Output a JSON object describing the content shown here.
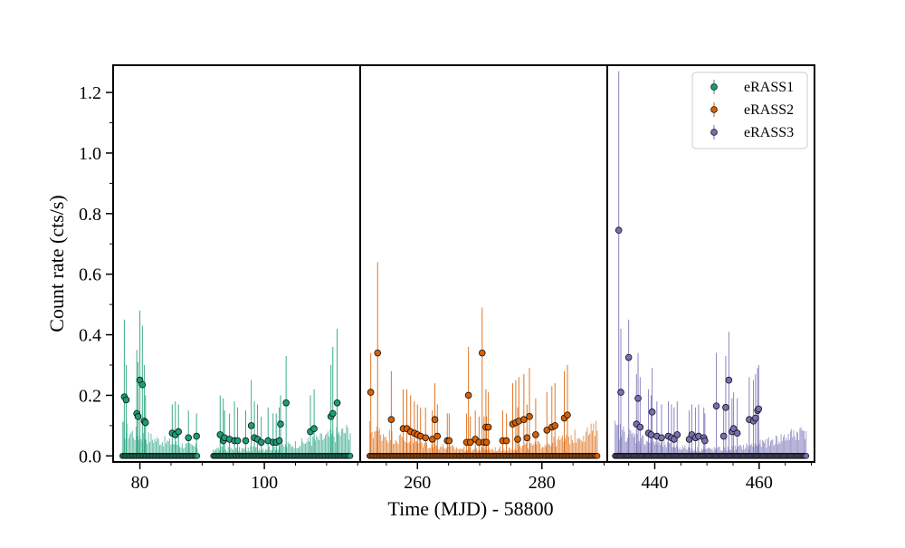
{
  "chart_data": {
    "type": "scatter",
    "title": "",
    "xlabel": "Time (MJD) - 58800",
    "ylabel": "Count rate (cts/s)",
    "ylim": [
      -0.02,
      1.29
    ],
    "yticks": [
      0.0,
      0.2,
      0.4,
      0.6,
      0.8,
      1.0,
      1.2
    ],
    "ytick_labels": [
      "0.0",
      "0.2",
      "0.4",
      "0.6",
      "0.8",
      "1.0",
      "1.2"
    ],
    "legend_placement": "top-right",
    "grid": false,
    "panels": [
      {
        "series_name": "eRASS1",
        "color": "#1b9e77",
        "xlim": [
          75.7,
          115.4
        ],
        "xticks": [
          80,
          100
        ],
        "xtick_labels": [
          "80",
          "100"
        ],
        "gap": [
          89.3,
          91.7
        ],
        "baseline_err_lo": 0.03,
        "baseline_err_hi": 0.12,
        "detections": [
          [
            77.5,
            0.195,
            0.45
          ],
          [
            77.8,
            0.185,
            0.3
          ],
          [
            79.5,
            0.14,
            0.35
          ],
          [
            79.7,
            0.13,
            0.31
          ],
          [
            80.0,
            0.25,
            0.48
          ],
          [
            80.4,
            0.235,
            0.43
          ],
          [
            80.7,
            0.115,
            0.3
          ],
          [
            80.9,
            0.11,
            0.2
          ],
          [
            85.2,
            0.075,
            0.17
          ],
          [
            85.7,
            0.07,
            0.18
          ],
          [
            86.2,
            0.08,
            0.17
          ],
          [
            87.8,
            0.06,
            0.15
          ],
          [
            89.1,
            0.065,
            0.14
          ],
          [
            92.9,
            0.07,
            0.2
          ],
          [
            93.4,
            0.05,
            0.19
          ],
          [
            93.6,
            0.06,
            0.15
          ],
          [
            94.4,
            0.055,
            0.14
          ],
          [
            95.2,
            0.05,
            0.18
          ],
          [
            95.7,
            0.05,
            0.16
          ],
          [
            97.0,
            0.05,
            0.15
          ],
          [
            97.9,
            0.1,
            0.25
          ],
          [
            98.4,
            0.06,
            0.18
          ],
          [
            98.9,
            0.055,
            0.17
          ],
          [
            99.5,
            0.045,
            0.13
          ],
          [
            100.6,
            0.05,
            0.16
          ],
          [
            101.4,
            0.045,
            0.14
          ],
          [
            101.9,
            0.045,
            0.14
          ],
          [
            102.4,
            0.05,
            0.16
          ],
          [
            102.6,
            0.105,
            0.2
          ],
          [
            103.5,
            0.175,
            0.33
          ],
          [
            107.4,
            0.08,
            0.2
          ],
          [
            108.0,
            0.09,
            0.22
          ],
          [
            110.7,
            0.13,
            0.3
          ],
          [
            111.0,
            0.14,
            0.36
          ],
          [
            111.7,
            0.175,
            0.42
          ]
        ]
      },
      {
        "series_name": "eRASS2",
        "color": "#d95f02",
        "xlim": [
          250.8,
          290.5
        ],
        "xticks": [
          260,
          280
        ],
        "xtick_labels": [
          "260",
          "280"
        ],
        "gap": null,
        "baseline_err_lo": 0.03,
        "baseline_err_hi": 0.12,
        "detections": [
          [
            252.5,
            0.21,
            0.34
          ],
          [
            253.6,
            0.34,
            0.64
          ],
          [
            255.8,
            0.12,
            0.28
          ],
          [
            257.7,
            0.09,
            0.22
          ],
          [
            258.3,
            0.09,
            0.22
          ],
          [
            258.9,
            0.08,
            0.2
          ],
          [
            259.5,
            0.075,
            0.18
          ],
          [
            260.0,
            0.07,
            0.17
          ],
          [
            260.5,
            0.065,
            0.16
          ],
          [
            261.3,
            0.06,
            0.16
          ],
          [
            262.4,
            0.055,
            0.15
          ],
          [
            262.8,
            0.12,
            0.24
          ],
          [
            263.2,
            0.065,
            0.17
          ],
          [
            264.8,
            0.05,
            0.14
          ],
          [
            265.1,
            0.05,
            0.14
          ],
          [
            267.9,
            0.045,
            0.14
          ],
          [
            268.2,
            0.2,
            0.36
          ],
          [
            268.5,
            0.045,
            0.13
          ],
          [
            269.3,
            0.055,
            0.15
          ],
          [
            269.9,
            0.045,
            0.13
          ],
          [
            270.4,
            0.34,
            0.49
          ],
          [
            270.7,
            0.045,
            0.13
          ],
          [
            271.0,
            0.095,
            0.22
          ],
          [
            271.4,
            0.095,
            0.21
          ],
          [
            271.1,
            0.045,
            0.13
          ],
          [
            273.7,
            0.05,
            0.15
          ],
          [
            274.3,
            0.05,
            0.14
          ],
          [
            275.3,
            0.105,
            0.24
          ],
          [
            275.8,
            0.11,
            0.25
          ],
          [
            276.1,
            0.055,
            0.16
          ],
          [
            276.3,
            0.115,
            0.26
          ],
          [
            277.1,
            0.12,
            0.27
          ],
          [
            277.6,
            0.06,
            0.17
          ],
          [
            278.0,
            0.13,
            0.29
          ],
          [
            279.0,
            0.07,
            0.19
          ],
          [
            280.8,
            0.085,
            0.21
          ],
          [
            281.6,
            0.095,
            0.23
          ],
          [
            282.1,
            0.1,
            0.24
          ],
          [
            283.6,
            0.125,
            0.28
          ],
          [
            284.1,
            0.135,
            0.3
          ]
        ]
      },
      {
        "series_name": "eRASS3",
        "color": "#7570b3",
        "xlim": [
          430.9,
          470.6
        ],
        "xticks": [
          440,
          460
        ],
        "xtick_labels": [
          "440",
          "460"
        ],
        "gap": null,
        "baseline_err_lo": 0.03,
        "baseline_err_hi": 0.12,
        "detections": [
          [
            433.1,
            0.745,
            1.27
          ],
          [
            433.5,
            0.21,
            0.42
          ],
          [
            435.0,
            0.325,
            0.45
          ],
          [
            436.5,
            0.105,
            0.27
          ],
          [
            436.8,
            0.19,
            0.34
          ],
          [
            437.2,
            0.095,
            0.26
          ],
          [
            438.8,
            0.075,
            0.22
          ],
          [
            439.3,
            0.07,
            0.2
          ],
          [
            439.5,
            0.145,
            0.29
          ],
          [
            440.4,
            0.065,
            0.18
          ],
          [
            441.3,
            0.06,
            0.17
          ],
          [
            442.6,
            0.065,
            0.18
          ],
          [
            443.2,
            0.06,
            0.17
          ],
          [
            443.7,
            0.055,
            0.16
          ],
          [
            444.3,
            0.07,
            0.18
          ],
          [
            446.6,
            0.055,
            0.15
          ],
          [
            447.1,
            0.07,
            0.17
          ],
          [
            447.8,
            0.06,
            0.16
          ],
          [
            448.4,
            0.065,
            0.17
          ],
          [
            449.4,
            0.06,
            0.16
          ],
          [
            449.6,
            0.05,
            0.14
          ],
          [
            451.8,
            0.165,
            0.34
          ],
          [
            453.2,
            0.065,
            0.17
          ],
          [
            453.6,
            0.16,
            0.33
          ],
          [
            454.2,
            0.25,
            0.41
          ],
          [
            454.8,
            0.08,
            0.19
          ],
          [
            455.1,
            0.09,
            0.21
          ],
          [
            455.8,
            0.075,
            0.19
          ],
          [
            458.1,
            0.12,
            0.26
          ],
          [
            458.9,
            0.115,
            0.25
          ],
          [
            459.3,
            0.125,
            0.27
          ],
          [
            459.7,
            0.15,
            0.29
          ],
          [
            459.9,
            0.155,
            0.3
          ]
        ]
      }
    ]
  },
  "legend": {
    "entries": [
      {
        "label": "eRASS1",
        "color": "#1b9e77"
      },
      {
        "label": "eRASS2",
        "color": "#d95f02"
      },
      {
        "label": "eRASS3",
        "color": "#7570b3"
      }
    ]
  }
}
